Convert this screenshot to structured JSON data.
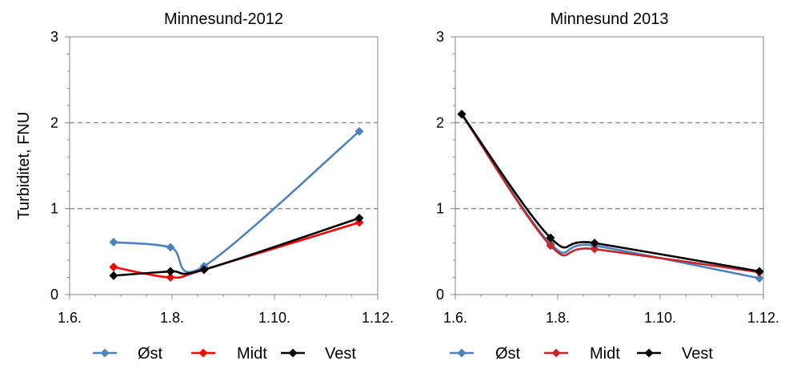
{
  "chart_data": [
    {
      "type": "line",
      "title": "Minnesund-2012",
      "ylabel": "Turbiditet, FNU",
      "xlabel": "",
      "ylim": [
        0,
        3
      ],
      "yticks": [
        "0",
        "1",
        "2",
        "3"
      ],
      "xticks": [
        "1.6.",
        "1.8.",
        "1.10.",
        "1.12."
      ],
      "gridlines_y": [
        1,
        2
      ],
      "series": [
        {
          "name": "Øst",
          "color": "#4f81bd",
          "marker": "diamond",
          "points": [
            [
              "1.6.",
              0.61
            ],
            [
              "1.8.",
              0.55
            ],
            [
              "1.8.",
              0.33
            ],
            [
              "1.10.",
              1.9
            ]
          ]
        },
        {
          "name": "Midt",
          "color": "#ff0000",
          "marker": "diamond",
          "points": [
            [
              "1.6.",
              0.32
            ],
            [
              "1.8.",
              0.2
            ],
            [
              "1.8.",
              0.29
            ],
            [
              "1.10.",
              0.84
            ]
          ]
        },
        {
          "name": "Vest",
          "color": "#000000",
          "marker": "diamond",
          "points": [
            [
              "1.6.",
              0.22
            ],
            [
              "1.8.",
              0.27
            ],
            [
              "1.8.",
              0.29
            ],
            [
              "1.10.",
              0.89
            ]
          ]
        }
      ]
    },
    {
      "type": "line",
      "title": "Minnesund 2013",
      "ylabel": "",
      "xlabel": "",
      "ylim": [
        0,
        3
      ],
      "yticks": [
        "0",
        "1",
        "2",
        "3"
      ],
      "xticks": [
        "1.6.",
        "1.8.",
        "1.10.",
        "1.12."
      ],
      "gridlines_y": [
        1,
        2
      ],
      "series": [
        {
          "name": "Øst",
          "color": "#4f81bd",
          "marker": "diamond",
          "points": [
            [
              "1.6.",
              2.1
            ],
            [
              "1.8.",
              0.59
            ],
            [
              "1.8.",
              0.57
            ],
            [
              "1.10.",
              0.19
            ]
          ]
        },
        {
          "name": "Midt",
          "color": "#c0282d",
          "marker": "diamond",
          "points": [
            [
              "1.6.",
              2.1
            ],
            [
              "1.8.",
              0.57
            ],
            [
              "1.8.",
              0.53
            ],
            [
              "1.10.",
              0.26
            ]
          ]
        },
        {
          "name": "Vest",
          "color": "#000000",
          "marker": "diamond",
          "points": [
            [
              "1.6.",
              2.1
            ],
            [
              "1.8.",
              0.66
            ],
            [
              "1.8.",
              0.6
            ],
            [
              "1.10.",
              0.27
            ]
          ]
        }
      ]
    }
  ]
}
